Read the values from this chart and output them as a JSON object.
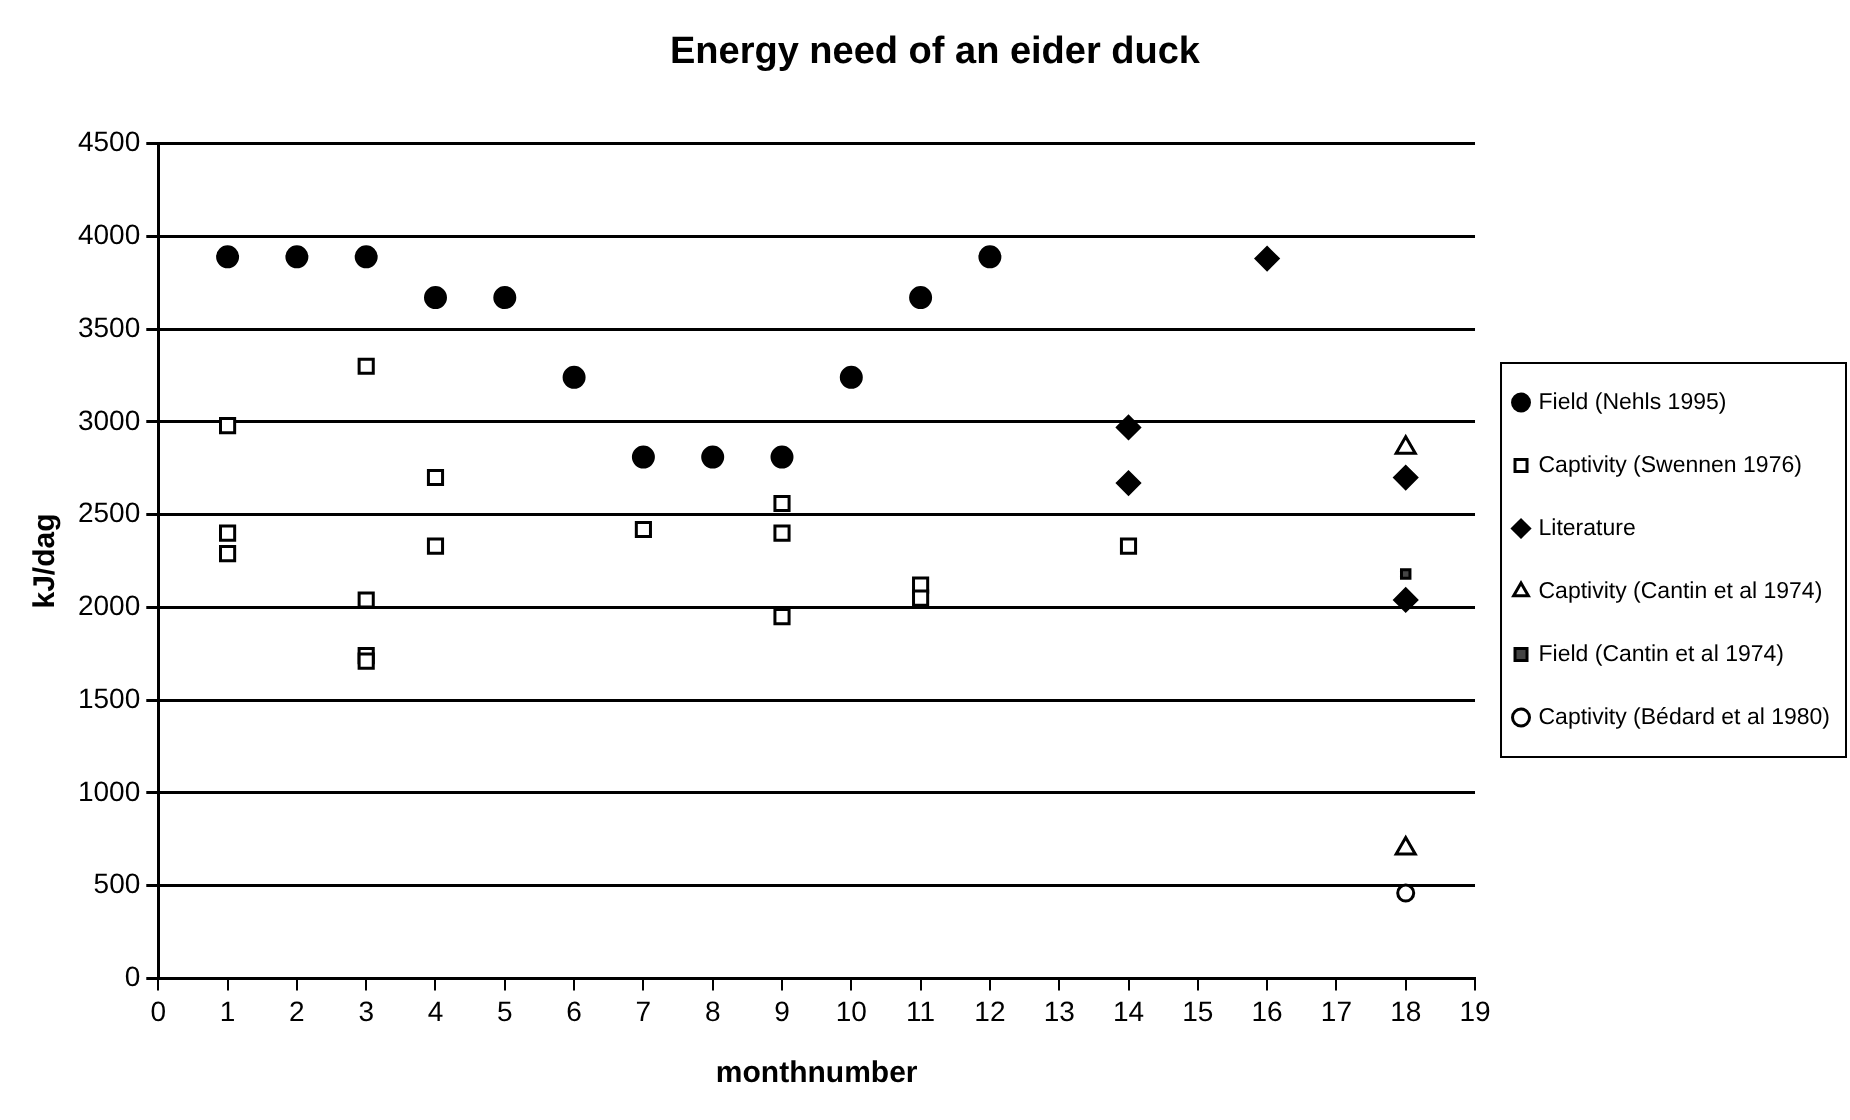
{
  "chart_data": {
    "type": "scatter",
    "title": "Energy need of an eider duck",
    "xlabel": "monthnumber",
    "ylabel": "kJ/dag",
    "xlim": [
      0,
      19
    ],
    "xticks": [
      0,
      1,
      2,
      3,
      4,
      5,
      6,
      7,
      8,
      9,
      10,
      11,
      12,
      13,
      14,
      15,
      16,
      17,
      18,
      19
    ],
    "ylim": [
      0,
      4500
    ],
    "yticks": [
      0,
      500,
      1000,
      1500,
      2000,
      2500,
      3000,
      3500,
      4000,
      4500
    ],
    "grid": "y",
    "legend": "right",
    "series": [
      {
        "name": "Field (Nehls 1995)",
        "color": "#000000",
        "marker": "circle",
        "x": [
          1,
          2,
          3,
          4,
          5,
          6,
          7,
          8,
          9,
          10,
          11,
          12
        ],
        "values": [
          3890,
          3890,
          3890,
          3670,
          3670,
          3240,
          2810,
          2810,
          2810,
          3240,
          3670,
          3890
        ]
      },
      {
        "name": "Captivity (Swennen 1976)",
        "color": "#000000",
        "marker": "square",
        "x": [
          1,
          1,
          1,
          3,
          3,
          3,
          3,
          4,
          4,
          7,
          9,
          9,
          9,
          11,
          11,
          14
        ],
        "values": [
          2980,
          2400,
          2290,
          3300,
          2040,
          1740,
          1710,
          2700,
          2330,
          2420,
          2560,
          2400,
          1950,
          2120,
          2050,
          2330
        ]
      },
      {
        "name": "Literature",
        "color": "#000000",
        "marker": "diamond",
        "x": [
          14,
          14,
          16,
          18,
          18
        ],
        "values": [
          2970,
          2670,
          3880,
          2700,
          2040
        ]
      },
      {
        "name": "Captivity (Cantin et al 1974)",
        "color": "#000000",
        "marker": "triangle",
        "x": [
          18,
          18
        ],
        "values": [
          2860,
          700
        ]
      },
      {
        "name": "Field (Cantin et al 1974)",
        "color": "#000000",
        "marker": "square",
        "x": [
          18
        ],
        "values": [
          2180
        ]
      },
      {
        "name": "Captivity (Bédard et al 1980)",
        "color": "#000000",
        "marker": "circle",
        "x": [
          18
        ],
        "values": [
          460
        ]
      }
    ]
  }
}
